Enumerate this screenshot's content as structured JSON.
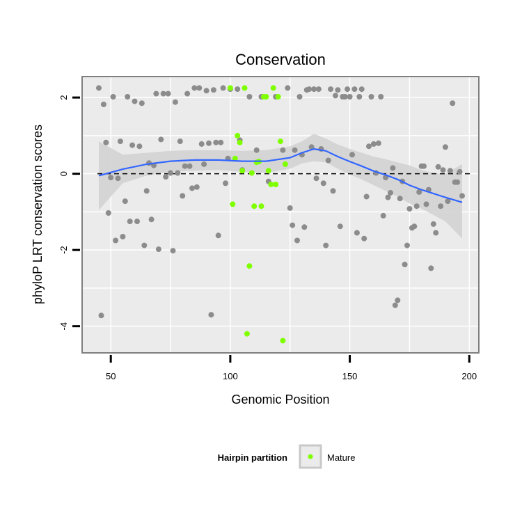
{
  "chart_data": {
    "type": "scatter",
    "title": "Conservation",
    "xlabel": "Genomic Position",
    "ylabel": "phyloP LRT conservation scores",
    "xlim": [
      38,
      204
    ],
    "ylim": [
      -4.7,
      2.55
    ],
    "x_ticks": [
      50,
      100,
      150,
      200
    ],
    "y_ticks": [
      -4,
      -2,
      0,
      2
    ],
    "grid": true,
    "reference_line": {
      "y": 0,
      "style": "dashed"
    },
    "legend": {
      "title": "Hairpin partition",
      "position": "bottom",
      "entries": [
        {
          "label": "Mature",
          "color": "#7fff00"
        }
      ]
    },
    "colors": {
      "other": "#8c8c8c",
      "mature": "#7fff00",
      "smooth": "#3366ff",
      "band": "#d3d3d3",
      "panel": "#ebebeb"
    },
    "series": [
      {
        "points": [
          [
            45,
            2.25
          ],
          [
            47,
            1.82
          ],
          [
            48,
            0.82
          ],
          [
            49,
            -1.03
          ],
          [
            50,
            -0.1
          ],
          [
            51,
            2.02
          ],
          [
            52,
            -1.75
          ],
          [
            53,
            -0.12
          ],
          [
            54,
            0.85
          ],
          [
            55,
            -1.65
          ],
          [
            56,
            -0.72
          ],
          [
            57,
            2.02
          ],
          [
            58,
            -1.25
          ],
          [
            59,
            0.75
          ],
          [
            60,
            1.9
          ],
          [
            61,
            -1.25
          ],
          [
            62,
            0.72
          ],
          [
            63,
            1.85
          ],
          [
            64,
            -1.88
          ],
          [
            65,
            -0.45
          ],
          [
            66,
            0.28
          ],
          [
            67,
            -1.2
          ],
          [
            68,
            0.22
          ],
          [
            69,
            2.1
          ],
          [
            70,
            -1.98
          ],
          [
            71,
            0.9
          ],
          [
            72,
            2.1
          ],
          [
            73,
            -0.08
          ],
          [
            74,
            2.1
          ],
          [
            75,
            0.02
          ],
          [
            76,
            -2.02
          ],
          [
            77,
            1.88
          ],
          [
            78,
            0.02
          ],
          [
            79,
            0.85
          ],
          [
            80,
            -0.58
          ],
          [
            81,
            0.2
          ],
          [
            82,
            2.1
          ],
          [
            83,
            0.2
          ],
          [
            84,
            -0.38
          ],
          [
            85,
            2.25
          ],
          [
            86,
            -0.35
          ],
          [
            87,
            2.25
          ],
          [
            88,
            0.78
          ],
          [
            89,
            0.25
          ],
          [
            90,
            2.18
          ],
          [
            91,
            0.8
          ],
          [
            92,
            -3.7
          ],
          [
            93,
            2.2
          ],
          [
            94,
            0.82
          ],
          [
            95,
            -1.62
          ],
          [
            96,
            0.82
          ],
          [
            97,
            2.25
          ],
          [
            98,
            -0.25
          ],
          [
            99,
            0.4
          ],
          [
            100,
            2.22
          ],
          [
            103,
            2.22
          ],
          [
            104,
            0.88
          ],
          [
            105,
            0.1
          ],
          [
            108,
            2.02
          ],
          [
            111,
            0.62
          ],
          [
            113,
            2.02
          ],
          [
            116,
            -0.2
          ],
          [
            119,
            2.02
          ],
          [
            122,
            0.62
          ],
          [
            124,
            2.25
          ],
          [
            125,
            -0.9
          ],
          [
            126,
            -1.35
          ],
          [
            127,
            0.62
          ],
          [
            128,
            -1.75
          ],
          [
            129,
            2.02
          ],
          [
            130,
            0.5
          ],
          [
            131,
            -1.4
          ],
          [
            132,
            2.2
          ],
          [
            133,
            2.22
          ],
          [
            134,
            0.7
          ],
          [
            135,
            2.22
          ],
          [
            136,
            -0.12
          ],
          [
            137,
            2.22
          ],
          [
            138,
            0.65
          ],
          [
            139,
            -0.25
          ],
          [
            140,
            -1.88
          ],
          [
            141,
            0.35
          ],
          [
            142,
            2.22
          ],
          [
            143,
            -0.45
          ],
          [
            144,
            2.05
          ],
          [
            145,
            2.2
          ],
          [
            146,
            -1.38
          ],
          [
            147,
            2.02
          ],
          [
            148,
            2.02
          ],
          [
            149,
            2.22
          ],
          [
            150,
            2.02
          ],
          [
            151,
            0.5
          ],
          [
            152,
            2.22
          ],
          [
            153,
            -1.55
          ],
          [
            154,
            2.02
          ],
          [
            155,
            2.22
          ],
          [
            156,
            -1.7
          ],
          [
            157,
            -0.6
          ],
          [
            158,
            0.72
          ],
          [
            159,
            2.02
          ],
          [
            160,
            0.78
          ],
          [
            161,
            0.02
          ],
          [
            162,
            0.8
          ],
          [
            163,
            2.02
          ],
          [
            164,
            -1.1
          ],
          [
            165,
            -0.1
          ],
          [
            166,
            -0.62
          ],
          [
            167,
            -0.5
          ],
          [
            168,
            0.15
          ],
          [
            169,
            -3.45
          ],
          [
            170,
            -3.32
          ],
          [
            171,
            -0.65
          ],
          [
            172,
            -0.2
          ],
          [
            173,
            -2.38
          ],
          [
            174,
            -1.88
          ],
          [
            175,
            -0.92
          ],
          [
            176,
            -1.42
          ],
          [
            177,
            -1.38
          ],
          [
            178,
            -0.85
          ],
          [
            179,
            -0.48
          ],
          [
            180,
            0.2
          ],
          [
            181,
            0.2
          ],
          [
            182,
            -0.8
          ],
          [
            183,
            -0.42
          ],
          [
            184,
            -2.48
          ],
          [
            185,
            -1.32
          ],
          [
            186,
            -1.55
          ],
          [
            187,
            0.18
          ],
          [
            188,
            -0.85
          ],
          [
            189,
            0.1
          ],
          [
            190,
            0.7
          ],
          [
            191,
            -0.72
          ],
          [
            192,
            0.08
          ],
          [
            193,
            1.85
          ],
          [
            194,
            -0.22
          ],
          [
            195,
            -0.22
          ],
          [
            196,
            0.05
          ],
          [
            197,
            -0.58
          ],
          [
            46,
            -3.72
          ]
        ]
      },
      {
        "name": "Mature",
        "points": [
          [
            100,
            2.25
          ],
          [
            101,
            -0.8
          ],
          [
            102,
            0.4
          ],
          [
            103,
            1
          ],
          [
            104,
            0.82
          ],
          [
            105,
            0.08
          ],
          [
            106,
            2.25
          ],
          [
            107,
            -4.2
          ],
          [
            108,
            -2.42
          ],
          [
            109,
            0.02
          ],
          [
            110,
            -0.85
          ],
          [
            111,
            0.3
          ],
          [
            112,
            0.32
          ],
          [
            113,
            -0.85
          ],
          [
            114,
            2.02
          ],
          [
            115,
            2.02
          ],
          [
            116,
            0.08
          ],
          [
            117,
            -0.28
          ],
          [
            118,
            2.25
          ],
          [
            119,
            -0.28
          ],
          [
            120,
            2.02
          ],
          [
            121,
            0.85
          ],
          [
            122,
            -4.38
          ],
          [
            123,
            0.25
          ]
        ]
      }
    ],
    "smooth": {
      "x": [
        45,
        55,
        65,
        75,
        85,
        95,
        105,
        115,
        125,
        130,
        135,
        140,
        145,
        150,
        155,
        160,
        165,
        170,
        175,
        180,
        185,
        190,
        197
      ],
      "y": [
        -0.05,
        0.12,
        0.25,
        0.33,
        0.36,
        0.36,
        0.33,
        0.33,
        0.42,
        0.55,
        0.65,
        0.6,
        0.45,
        0.32,
        0.2,
        0.07,
        -0.03,
        -0.15,
        -0.3,
        -0.42,
        -0.52,
        -0.62,
        -0.75
      ],
      "lower": [
        -0.95,
        -0.25,
        -0.05,
        0.05,
        0.08,
        0.1,
        0.05,
        0.02,
        0.13,
        0.27,
        0.33,
        0.3,
        0.13,
        -0.02,
        -0.15,
        -0.3,
        -0.45,
        -0.6,
        -0.78,
        -0.92,
        -1.08,
        -1.25,
        -1.7
      ],
      "upper": [
        0.85,
        0.5,
        0.55,
        0.6,
        0.62,
        0.62,
        0.6,
        0.62,
        0.72,
        0.85,
        1.05,
        0.92,
        0.77,
        0.65,
        0.55,
        0.45,
        0.38,
        0.3,
        0.22,
        0.1,
        0.02,
        0.0,
        0.25
      ]
    }
  }
}
